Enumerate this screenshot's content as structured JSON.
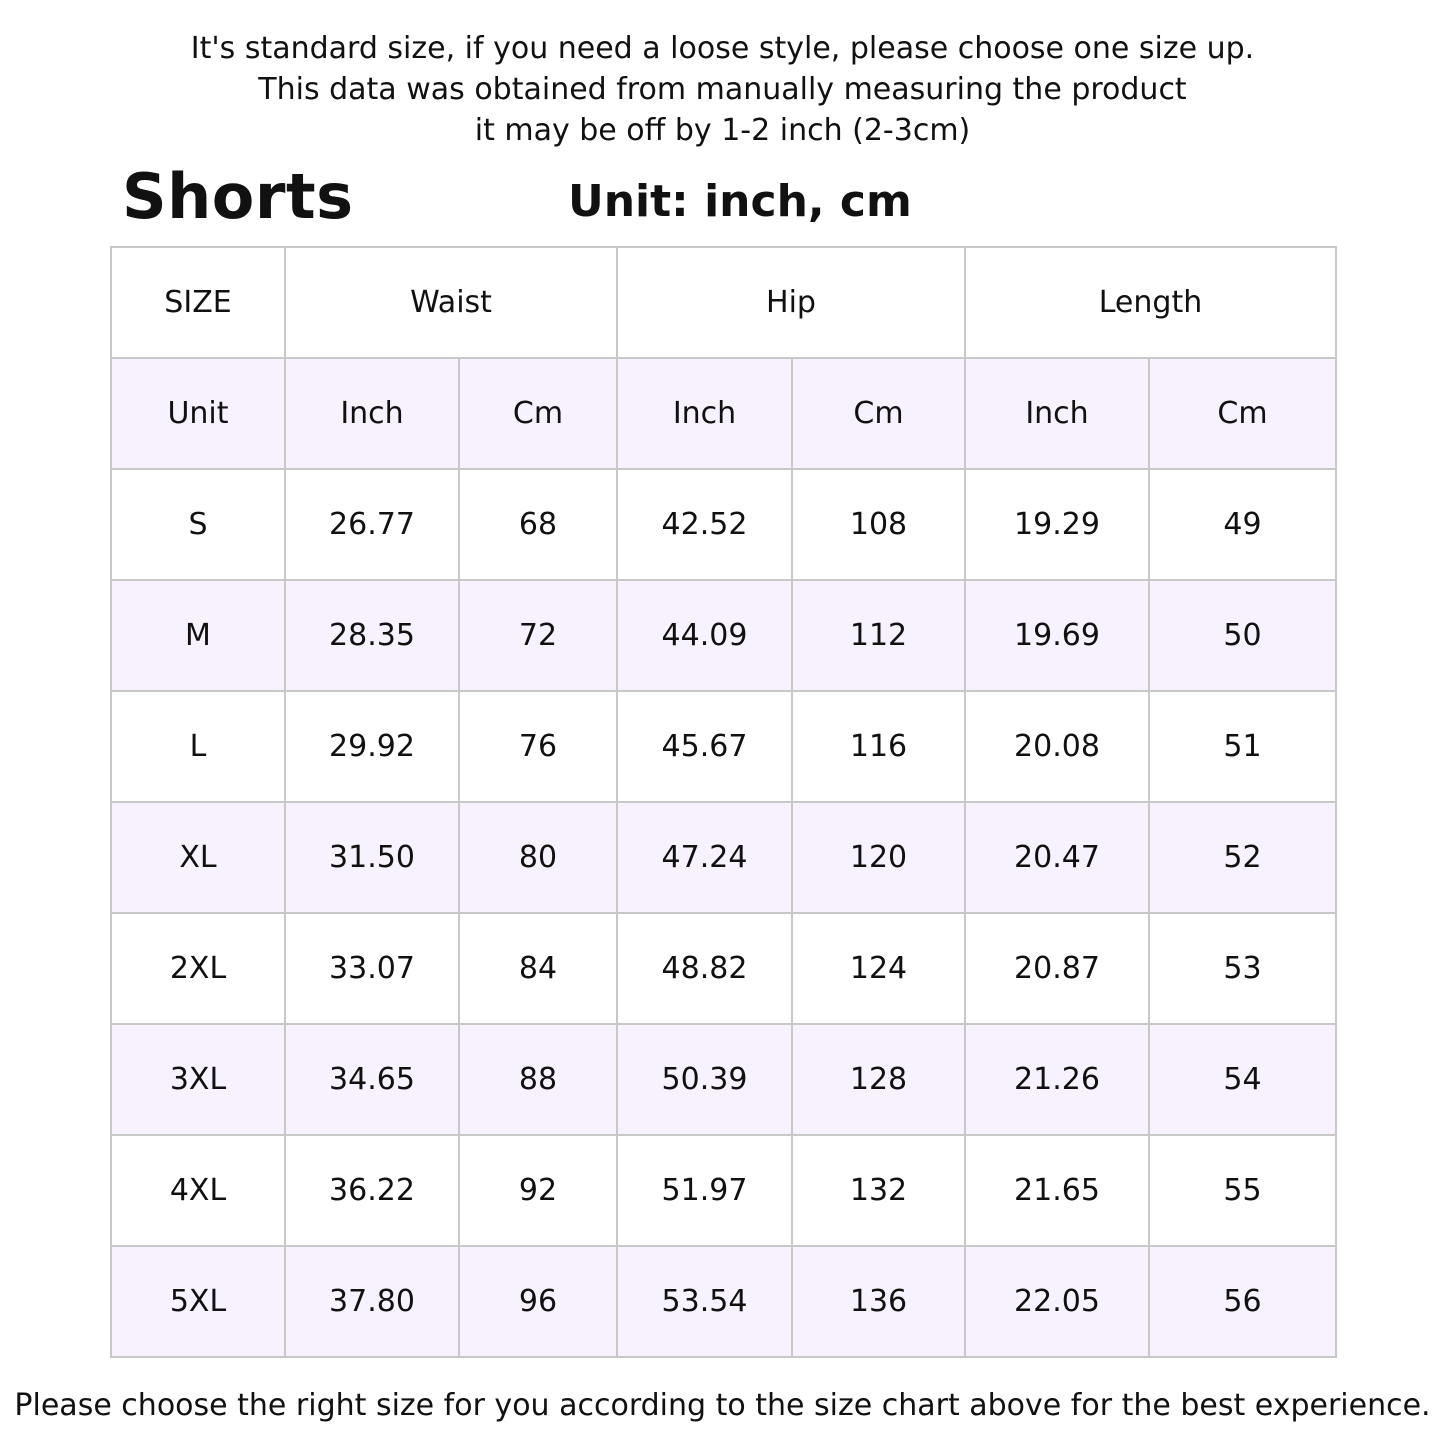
{
  "notes": [
    "It's standard size, if you need a loose style, please choose one size up.",
    "This data was obtained from manually measuring the product",
    "it may be off by 1-2 inch (2-3cm)"
  ],
  "title": "Shorts",
  "unit_label": "Unit: inch, cm",
  "colors": {
    "alt_row": "#f7f2fd",
    "border": "#c8c8c8"
  },
  "table": {
    "header": [
      "SIZE",
      "Waist",
      "Hip",
      "Length"
    ],
    "units": [
      "Unit",
      "Inch",
      "Cm",
      "Inch",
      "Cm",
      "Inch",
      "Cm"
    ],
    "rows": [
      [
        "S",
        "26.77",
        "68",
        "42.52",
        "108",
        "19.29",
        "49"
      ],
      [
        "M",
        "28.35",
        "72",
        "44.09",
        "112",
        "19.69",
        "50"
      ],
      [
        "L",
        "29.92",
        "76",
        "45.67",
        "116",
        "20.08",
        "51"
      ],
      [
        "XL",
        "31.50",
        "80",
        "47.24",
        "120",
        "20.47",
        "52"
      ],
      [
        "2XL",
        "33.07",
        "84",
        "48.82",
        "124",
        "20.87",
        "53"
      ],
      [
        "3XL",
        "34.65",
        "88",
        "50.39",
        "128",
        "21.26",
        "54"
      ],
      [
        "4XL",
        "36.22",
        "92",
        "51.97",
        "132",
        "21.65",
        "55"
      ],
      [
        "5XL",
        "37.80",
        "96",
        "53.54",
        "136",
        "22.05",
        "56"
      ]
    ]
  },
  "footer": "Please choose the right size for you according to the size chart above for the best experience."
}
